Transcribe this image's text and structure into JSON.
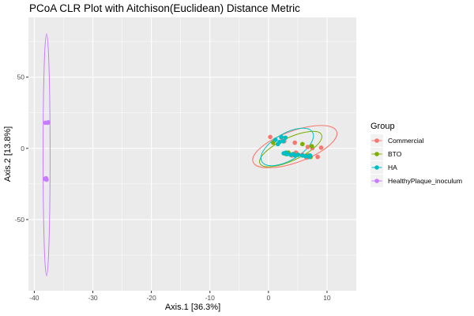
{
  "chart_data": {
    "type": "scatter",
    "title": "PCoA CLR Plot with Aitchison(Euclidean) Distance Metric",
    "xlabel": "Axis.1   [36.3%]",
    "ylabel": "Axis.2   [13.8%]",
    "xlim": [
      -41,
      15
    ],
    "ylim": [
      -100,
      92
    ],
    "x_ticks": [
      -40,
      -30,
      -20,
      -10,
      0,
      10
    ],
    "y_ticks": [
      -50,
      0,
      50
    ],
    "grid": true,
    "legend": {
      "title": "Group",
      "placement": "right"
    },
    "series": [
      {
        "name": "Commercial",
        "color": "#F8766D",
        "points": [
          [
            0.3,
            8
          ],
          [
            2.2,
            7.5
          ],
          [
            4.5,
            4
          ],
          [
            6.7,
            1
          ],
          [
            7.5,
            0.2
          ],
          [
            9.0,
            0.5
          ],
          [
            4.7,
            -3
          ],
          [
            5.8,
            -4.5
          ],
          [
            6.9,
            -5
          ],
          [
            7.1,
            -6
          ],
          [
            8.4,
            -6
          ],
          [
            6.5,
            -6.5
          ],
          [
            4.0,
            -5
          ],
          [
            2.7,
            5
          ]
        ],
        "ellipse": {
          "cx": 4.5,
          "cy": 1.2,
          "rx": 7.6,
          "ry": 11.0,
          "angle": -20
        }
      },
      {
        "name": "BTO",
        "color": "#7CAE00",
        "points": [
          [
            0.8,
            4
          ],
          [
            5.8,
            3
          ],
          [
            7.4,
            1.5
          ],
          [
            3.4,
            -3
          ],
          [
            4.2,
            -4
          ],
          [
            5.0,
            -4.5
          ],
          [
            6.5,
            -5
          ],
          [
            7.2,
            -6
          ],
          [
            3.0,
            -4
          ]
        ],
        "ellipse": {
          "cx": 3.8,
          "cy": -0.5,
          "rx": 5.8,
          "ry": 8.0,
          "angle": -25
        }
      },
      {
        "name": "HA",
        "color": "#00BFC4",
        "points": [
          [
            1.2,
            6
          ],
          [
            1.9,
            4.5
          ],
          [
            2.2,
            8
          ],
          [
            2.5,
            5
          ],
          [
            2.9,
            7.5
          ],
          [
            1.6,
            3
          ],
          [
            3.0,
            -3
          ],
          [
            3.2,
            -4
          ],
          [
            3.8,
            -4.5
          ],
          [
            4.3,
            -4
          ],
          [
            4.5,
            -5
          ],
          [
            5.1,
            -4.5
          ],
          [
            5.8,
            -5
          ],
          [
            6.3,
            -5.5
          ],
          [
            6.9,
            -6
          ],
          [
            7.1,
            -5
          ],
          [
            2.6,
            -3.5
          ]
        ],
        "ellipse": {
          "cx": 3.2,
          "cy": 1.0,
          "rx": 5.0,
          "ry": 9.5,
          "angle": -30
        }
      },
      {
        "name": "HealthyPlaque_inoculum",
        "color": "#C77CFF",
        "points": [
          [
            -38.1,
            18
          ],
          [
            -37.7,
            18
          ],
          [
            -38.0,
            -21
          ],
          [
            -37.9,
            -22
          ],
          [
            -38.2,
            -21.5
          ],
          [
            -37.6,
            18.3
          ]
        ],
        "ellipse": {
          "cx": -37.9,
          "cy": -4.5,
          "rx": 0.6,
          "ry": 85.0,
          "angle": 0
        }
      }
    ]
  }
}
